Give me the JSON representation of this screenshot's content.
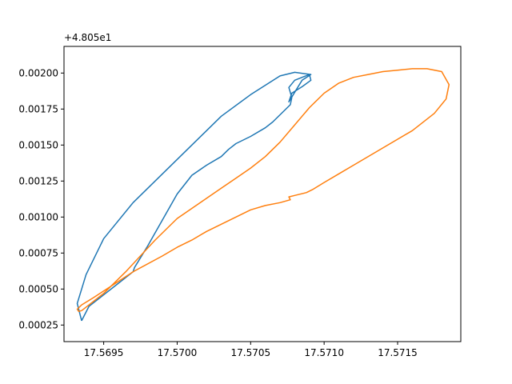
{
  "chart_data": {
    "type": "line",
    "title": "",
    "xlabel": "",
    "ylabel": "",
    "y_offset_label": "+4.805e1",
    "xlim": [
      17.56923,
      17.57193
    ],
    "ylim": [
      0.000135,
      0.002185
    ],
    "x_ticks": [
      {
        "value": 17.5695,
        "label": "17.5695"
      },
      {
        "value": 17.57,
        "label": "17.5700"
      },
      {
        "value": 17.5705,
        "label": "17.5705"
      },
      {
        "value": 17.571,
        "label": "17.5710"
      },
      {
        "value": 17.5715,
        "label": "17.5715"
      }
    ],
    "y_ticks": [
      {
        "value": 0.00025,
        "label": "0.00025"
      },
      {
        "value": 0.0005,
        "label": "0.00050"
      },
      {
        "value": 0.00075,
        "label": "0.00075"
      },
      {
        "value": 0.001,
        "label": "0.00100"
      },
      {
        "value": 0.00125,
        "label": "0.00125"
      },
      {
        "value": 0.0015,
        "label": "0.00150"
      },
      {
        "value": 0.00175,
        "label": "0.00175"
      },
      {
        "value": 0.002,
        "label": "0.00200"
      }
    ],
    "grid": false,
    "legend": "none",
    "series": [
      {
        "color": "#1f77b4",
        "x": [
          17.56935,
          17.5694,
          17.5696,
          17.5697,
          17.56971,
          17.5698,
          17.5699,
          17.57,
          17.5701,
          17.5702,
          17.5703,
          17.57035,
          17.5704,
          17.5705,
          17.5706,
          17.57065,
          17.5707,
          17.57077,
          17.57078,
          17.57076,
          17.5708,
          17.5709,
          17.57091,
          17.57085,
          17.57078,
          17.57076,
          17.57085,
          17.57091,
          17.5708,
          17.5707,
          17.5705,
          17.5703,
          17.5701,
          17.5699,
          17.5697,
          17.5695,
          17.56938,
          17.56932,
          17.56935
        ],
        "y": [
          0.00028,
          0.00038,
          0.00054,
          0.00062,
          0.00065,
          0.0008,
          0.00098,
          0.00116,
          0.00129,
          0.00136,
          0.00142,
          0.00147,
          0.00151,
          0.00156,
          0.00162,
          0.00166,
          0.00171,
          0.00178,
          0.00183,
          0.0019,
          0.00195,
          0.00199,
          0.00195,
          0.001905,
          0.00186,
          0.0018,
          0.00195,
          0.00199,
          0.002005,
          0.00198,
          0.00185,
          0.0017,
          0.0015,
          0.0013,
          0.0011,
          0.00085,
          0.0006,
          0.0004,
          0.00028
        ]
      },
      {
        "color": "#ff7f0e",
        "x": [
          17.56935,
          17.5695,
          17.56965,
          17.56975,
          17.56985,
          17.56995,
          17.57,
          17.5701,
          17.5702,
          17.5703,
          17.5704,
          17.5705,
          17.5706,
          17.5707,
          17.5708,
          17.5709,
          17.571,
          17.5711,
          17.5712,
          17.5713,
          17.5714,
          17.5715,
          17.5716,
          17.5717,
          17.5718,
          17.57185,
          17.57183,
          17.57175,
          17.5716,
          17.5714,
          17.5712,
          17.5711,
          17.571,
          17.57092,
          17.57088,
          17.5708,
          17.57076,
          17.57077,
          17.5707,
          17.5706,
          17.5705,
          17.5704,
          17.5703,
          17.5702,
          17.5701,
          17.57,
          17.5699,
          17.5697,
          17.56955,
          17.56943,
          17.56935,
          17.56932,
          17.56933,
          17.56935
        ],
        "y": [
          0.00035,
          0.00047,
          0.00062,
          0.00073,
          0.00084,
          0.00094,
          0.00099,
          0.00106,
          0.00113,
          0.0012,
          0.00127,
          0.00134,
          0.00142,
          0.00152,
          0.00164,
          0.00176,
          0.00186,
          0.00193,
          0.00197,
          0.00199,
          0.00201,
          0.00202,
          0.00203,
          0.00203,
          0.00201,
          0.00192,
          0.00182,
          0.00172,
          0.0016,
          0.00148,
          0.00136,
          0.0013,
          0.00124,
          0.00119,
          0.00117,
          0.00115,
          0.00114,
          0.00112,
          0.0011,
          0.00108,
          0.00105,
          0.001,
          0.00095,
          0.0009,
          0.00084,
          0.00079,
          0.00073,
          0.00062,
          0.00052,
          0.00044,
          0.00039,
          0.00036,
          0.000345,
          0.00035
        ]
      }
    ]
  }
}
